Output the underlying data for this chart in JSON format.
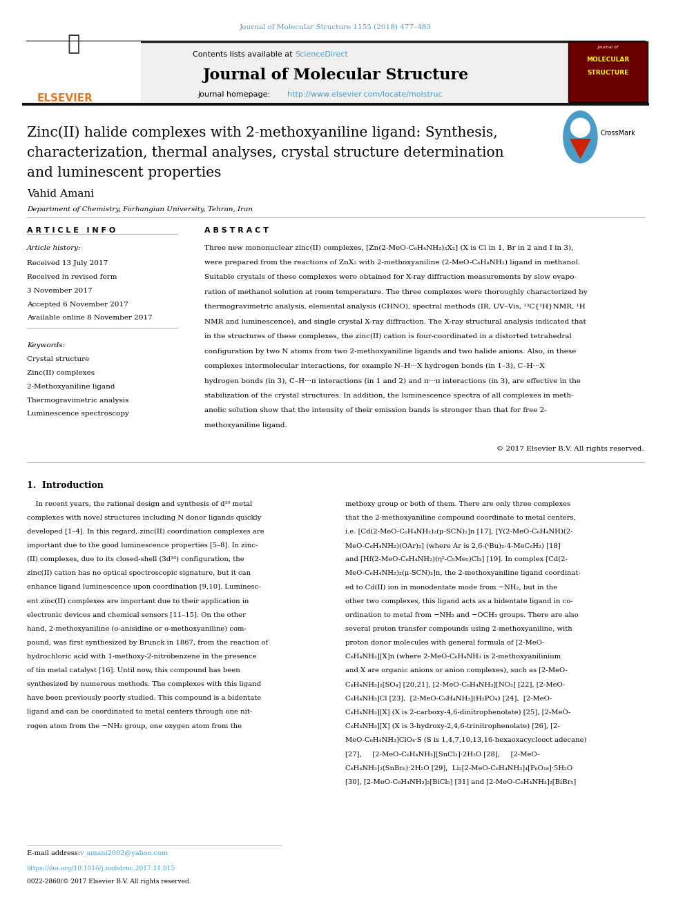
{
  "page_width": 9.92,
  "page_height": 13.23,
  "bg_color": "#ffffff",
  "top_journal_ref": "Journal of Molecular Structure 1155 (2018) 477–483",
  "top_journal_ref_color": "#4a9cc7",
  "header_bg_color": "#f0f0f0",
  "journal_title": "Journal of Molecular Structure",
  "contents_text": "Contents lists available at ",
  "sciencedirect_text": "ScienceDirect",
  "sciencedirect_color": "#4a9cc7",
  "homepage_label": "journal homepage: ",
  "homepage_url": "http://www.elsevier.com/locate/molstruc",
  "homepage_url_color": "#4a9cc7",
  "article_title_line1": "Zinc(II) halide complexes with 2-methoxyaniline ligand: Synthesis,",
  "article_title_line2": "characterization, thermal analyses, crystal structure determination",
  "article_title_line3": "and luminescent properties",
  "author_name": "Vahid Amani",
  "affiliation": "Department of Chemistry, Farhangian University, Tehran, Iran",
  "article_info_header": "A R T I C L E   I N F O",
  "abstract_header": "A B S T R A C T",
  "article_history_label": "Article history:",
  "received_date": "Received 13 July 2017",
  "revised_label": "Received in revised form",
  "revised_date": "3 November 2017",
  "accepted_date": "Accepted 6 November 2017",
  "available_date": "Available online 8 November 2017",
  "keywords_label": "Keywords:",
  "keyword1": "Crystal structure",
  "keyword2": "Zinc(II) complexes",
  "keyword3": "2-Methoxyaniline ligand",
  "keyword4": "Thermogravimetric analysis",
  "keyword5": "Luminescence spectroscopy",
  "copyright_text": "© 2017 Elsevier B.V. All rights reserved.",
  "intro_section": "1.  Introduction",
  "email_label": "E-mail address: ",
  "email_address": "v_amani2002@yahoo.com",
  "doi_text": "https://doi.org/10.1016/j.molstruc.2017.11.015",
  "issn_text": "0022-2860/© 2017 Elsevier B.V. All rights reserved.",
  "abstract_lines": [
    "Three new mononuclear zinc(II) complexes, [Zn(2-MeO-C₆H₄NH₂)₂X₂] (X is Cl in 1, Br in 2 and I in 3),",
    "were prepared from the reactions of ZnX₂ with 2-methoxyaniline (2-MeO-C₆H₄NH₂) ligand in methanol.",
    "Suitable crystals of these complexes were obtained for X-ray diffraction measurements by slow evapo-",
    "ration of methanol solution at room temperature. The three complexes were thoroughly characterized by",
    "thermogravimetric analysis, elemental analysis (CHNO), spectral methods (IR, UV–Vis, ¹³C{¹H}NMR, ¹H",
    "NMR and luminescence), and single crystal X-ray diffraction. The X-ray structural analysis indicated that",
    "in the structures of these complexes, the zinc(II) cation is four-coordinated in a distorted tetrahedral",
    "configuration by two N atoms from two 2-methoxyaniline ligands and two halide anions. Also, in these",
    "complexes intermolecular interactions, for example N–H···X hydrogen bonds (in 1–3), C–H···X",
    "hydrogen bonds (in 3), C–H···π interactions (in 1 and 2) and π···π interactions (in 3), are effective in the",
    "stabilization of the crystal structures. In addition, the luminescence spectra of all complexes in meth-",
    "anolic solution show that the intensity of their emission bands is stronger than that for free 2-",
    "methoxyaniline ligand."
  ],
  "intro_col1_lines": [
    "    In recent years, the rational design and synthesis of d¹⁰ metal",
    "complexes with novel structures including N donor ligands quickly",
    "developed [1–4]. In this regard, zinc(II) coordination complexes are",
    "important due to the good luminescence properties [5–8]. In zinc-",
    "(II) complexes, due to its closed-shell (3d¹⁰) configuration, the",
    "zinc(II) cation has no optical spectroscopic signature, but it can",
    "enhance ligand luminescence upon coordination [9,10]. Luminesc-",
    "ent zinc(II) complexes are important due to their application in",
    "electronic devices and chemical sensors [11–15]. On the other",
    "hand, 2-methoxyaniline (o-anisidine or o-methoxyaniline) com-",
    "pound, was first synthesized by Brunck in 1867, from the reaction of",
    "hydrochloric acid with 1-methoxy-2-nitrobenzene in the presence",
    "of tin metal catalyst [16]. Until now, this compound has been",
    "synthesized by numerous methods. The complexes with this ligand",
    "have been previously poorly studied. This compound is a bidentate",
    "ligand and can be coordinated to metal centers through one nit-",
    "rogen atom from the −NH₂ group, one oxygen atom from the"
  ],
  "intro_col2_lines": [
    "methoxy group or both of them. There are only three complexes",
    "that the 2-methoxyaniline compound coordinate to metal centers,",
    "i.e. [Cd(2-MeO-C₆H₄NH₂)₂(μ-SCN)₂]n [17], [Y(2-MeO-C₆H₄NH)(2-",
    "MeO-C₆H₄NH₂)(OAr)₂] (where Ar is 2,6-(ᵗBu)₂-4-MeC₆H₂) [18]",
    "and [Hf(2-MeO-C₆H₄NH₂)(η⁵-C₅Me₅)Cl₃] [19]. In complex [Cd(2-",
    "MeO-C₆H₄NH₂)₂(μ-SCN)₂]n, the 2-methoxyaniline ligand coordinat-",
    "ed to Cd(II) ion in monodentate mode from −NH₂, but in the",
    "other two complexes, this ligand acts as a bidentate ligand in co-",
    "ordination to metal from −NH₂ and −OCH₃ groups. There are also",
    "several proton transfer compounds using 2-methoxyaniline, with",
    "proton donor molecules with general formula of [2-MeO-",
    "C₆H₄NH₃][X]n (where 2-MeO-C₆H₄NH₃ is 2-methoxyanilinium",
    "and X are organic anions or anion complexes), such as [2-MeO-",
    "C₆H₄NH₃]₂[SO₄] [20,21], [2-MeO-C₆H₄NH₃][NO₃] [22], [2-MeO-",
    "C₆H₄NH₃]Cl [23],  [2-MeO-C₆H₄NH₃](H₂PO₄) [24],  [2-MeO-",
    "C₆H₄NH₃][X] (X is 2-carboxy-4,6-dinitrophenolate) [25], [2-MeO-",
    "C₆H₄NH₃][X] (X is 3-hydroxy-2,4,6-trinitrophenolate) [26], [2-",
    "MeO-C₆H₄NH₃]ClO₄·S (S is 1,4,7,10,13,16-hexaoxacyclooct adecane)",
    "[27],     [2-MeO-C₆H₄NH₃][SnCl₃]·2H₂O [28],     [2-MeO-",
    "C₆H₄NH₃]₂(SnBr₆)·2H₂O [29],  Li₂[2-MeO-C₆H₄NH₃]₄[P₆O₁₈]·5H₂O",
    "[30], [2-MeO-C₆H₄NH₃]₂[BiCl₅] [31] and [2-MeO-C₆H₄NH₃]₂[BiBr₅]"
  ]
}
